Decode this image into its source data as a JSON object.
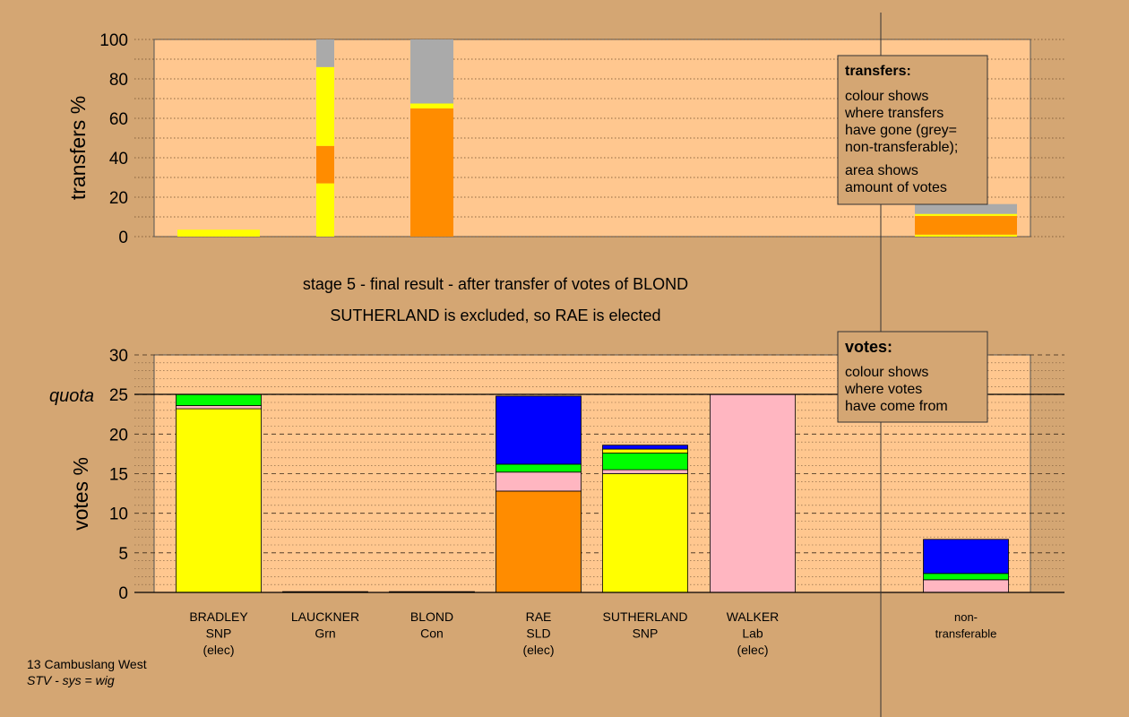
{
  "chart_data": [
    {
      "type": "bar",
      "stacked": true,
      "ylabel": "transfers %",
      "ylim": [
        0,
        100
      ],
      "yticks": [
        "0",
        "20",
        "40",
        "60",
        "80",
        "100"
      ],
      "categories": [
        "BRADLEY",
        "LAUCKNER",
        "BLOND",
        "RAE",
        "SUTHERLAND",
        "WALKER",
        "non-transferable"
      ],
      "series": [
        {
          "color": "#ffff00",
          "values": [
            {
              "BRADLEY": [
                0,
                3.5
              ]
            }
          ]
        },
        {
          "color": "#ffff00",
          "values": [
            {
              "LAUCKNER": [
                0,
                27
              ]
            }
          ]
        }
      ],
      "bars": [
        {
          "category": "BRADLEY",
          "segments": [
            {
              "color": "#ffff00",
              "y0": 0,
              "y1": 3.5
            }
          ]
        },
        {
          "category": "LAUCKNER",
          "segments": [
            {
              "color": "#ffff00",
              "y0": 0,
              "y1": 27
            },
            {
              "color": "#ff8c00",
              "y0": 27,
              "y1": 46
            },
            {
              "color": "#ffff00",
              "y0": 46,
              "y1": 86
            },
            {
              "color": "#aaaaaa",
              "y0": 86,
              "y1": 100
            }
          ]
        },
        {
          "category": "BLOND",
          "segments": [
            {
              "color": "#ff8c00",
              "y0": 0,
              "y1": 65
            },
            {
              "color": "#ffff00",
              "y0": 65,
              "y1": 67.5
            },
            {
              "color": "#aaaaaa",
              "y0": 67.5,
              "y1": 100
            }
          ]
        },
        {
          "category": "non-transferable",
          "segments": [
            {
              "color": "#ffff00",
              "y0": 0,
              "y1": 1
            },
            {
              "color": "#ff8c00",
              "y0": 1,
              "y1": 10.5
            },
            {
              "color": "#ffff00",
              "y0": 10.5,
              "y1": 11.5
            },
            {
              "color": "#aaaaaa",
              "y0": 11.5,
              "y1": 16.5
            }
          ]
        }
      ],
      "legend": {
        "title": "transfers:",
        "lines": [
          "colour shows",
          "where transfers",
          "have gone (grey=",
          "non-transferable);"
        ],
        "lines2": [
          "area shows",
          "amount of votes"
        ]
      }
    },
    {
      "type": "bar",
      "stacked": true,
      "ylabel": "votes %",
      "ylim": [
        0,
        30
      ],
      "yticks": [
        "0",
        "5",
        "10",
        "15",
        "20",
        "25",
        "30"
      ],
      "quota": 25,
      "quota_label": "quota",
      "categories": [
        "BRADLEY",
        "LAUCKNER",
        "BLOND",
        "RAE",
        "SUTHERLAND",
        "WALKER",
        "non-transferable"
      ],
      "bars": [
        {
          "category": "BRADLEY",
          "segments": [
            {
              "color": "#ffff00",
              "y0": 0,
              "y1": 23.2
            },
            {
              "color": "#ffb6c1",
              "y0": 23.2,
              "y1": 23.6
            },
            {
              "color": "#00ff00",
              "y0": 23.6,
              "y1": 25
            }
          ]
        },
        {
          "category": "LAUCKNER",
          "segments": [
            {
              "color": "#00ff00",
              "y0": 0,
              "y1": 0.1
            }
          ]
        },
        {
          "category": "BLOND",
          "segments": [
            {
              "color": "#ff8c00",
              "y0": 0,
              "y1": 0.1
            }
          ]
        },
        {
          "category": "RAE",
          "segments": [
            {
              "color": "#ff8c00",
              "y0": 0,
              "y1": 12.8
            },
            {
              "color": "#ffb6c1",
              "y0": 12.8,
              "y1": 15.2
            },
            {
              "color": "#00ff00",
              "y0": 15.2,
              "y1": 16.2
            },
            {
              "color": "#0000ff",
              "y0": 16.2,
              "y1": 24.8
            }
          ]
        },
        {
          "category": "SUTHERLAND",
          "segments": [
            {
              "color": "#ffff00",
              "y0": 0,
              "y1": 15
            },
            {
              "color": "#ffb6c1",
              "y0": 15,
              "y1": 15.5
            },
            {
              "color": "#00ff00",
              "y0": 15.5,
              "y1": 17.6
            },
            {
              "color": "#ffff00",
              "y0": 17.6,
              "y1": 18.1
            },
            {
              "color": "#0000ff",
              "y0": 18.1,
              "y1": 18.6
            }
          ]
        },
        {
          "category": "WALKER",
          "segments": [
            {
              "color": "#ffb6c1",
              "y0": 0,
              "y1": 25
            }
          ]
        },
        {
          "category": "non-transferable",
          "segments": [
            {
              "color": "#ffb6c1",
              "y0": 0,
              "y1": 1.6
            },
            {
              "color": "#00ff00",
              "y0": 1.6,
              "y1": 2.4
            },
            {
              "color": "#0000ff",
              "y0": 2.4,
              "y1": 6.7
            }
          ]
        }
      ],
      "xlabels": [
        [
          "BRADLEY",
          "SNP",
          "(elec)"
        ],
        [
          "LAUCKNER",
          "Grn"
        ],
        [
          "BLOND",
          "Con"
        ],
        [
          "RAE",
          "SLD",
          "(elec)"
        ],
        [
          "SUTHERLAND",
          "SNP"
        ],
        [
          "WALKER",
          "Lab",
          "(elec)"
        ],
        [
          "non-",
          "transferable"
        ]
      ],
      "legend": {
        "title": "votes:",
        "lines": [
          "colour shows",
          "where votes",
          "have come from"
        ]
      }
    }
  ],
  "headline": {
    "line1": "stage 5 - final result - after transfer of votes of BLOND",
    "line2": "SUTHERLAND is excluded, so RAE is elected"
  },
  "footer": {
    "line1": "13 Cambuslang West",
    "line2": "STV - sys = wig"
  },
  "colors": {
    "background": "#d4a673",
    "plot_bg": "#ffc78f"
  }
}
